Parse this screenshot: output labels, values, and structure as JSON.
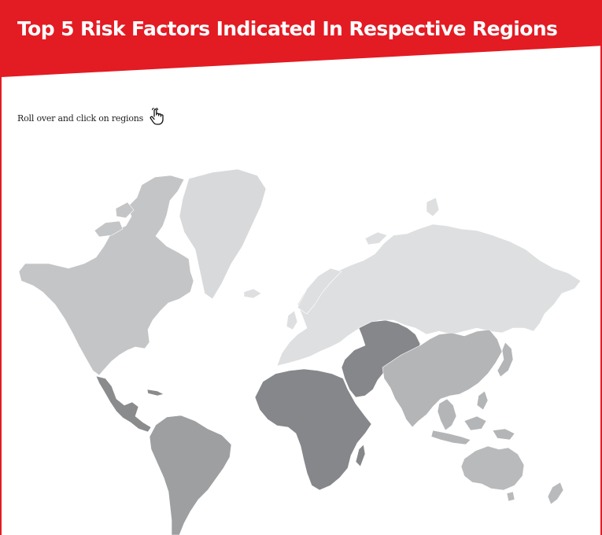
{
  "header": {
    "title": "Top 5 Risk Factors Indicated In Respective Regions",
    "band_color": "#e31b23"
  },
  "instruction": {
    "text": "Roll over and click on regions",
    "icon": "hand-pointer-icon"
  },
  "map": {
    "type": "choropleth-world",
    "regions": [
      {
        "id": "north-america",
        "fill": "#c4c5c7"
      },
      {
        "id": "greenland",
        "fill": "#d8d9db"
      },
      {
        "id": "central-america",
        "fill": "#898b8d"
      },
      {
        "id": "south-america",
        "fill": "#9d9fa1"
      },
      {
        "id": "europe-russia",
        "fill": "#dedfe0"
      },
      {
        "id": "africa",
        "fill": "#85878a"
      },
      {
        "id": "middle-east-central-asia",
        "fill": "#85878a"
      },
      {
        "id": "east-asia",
        "fill": "#b3b5b7"
      },
      {
        "id": "southeast-asia",
        "fill": "#b3b5b7"
      },
      {
        "id": "oceania",
        "fill": "#b8babc"
      }
    ]
  }
}
